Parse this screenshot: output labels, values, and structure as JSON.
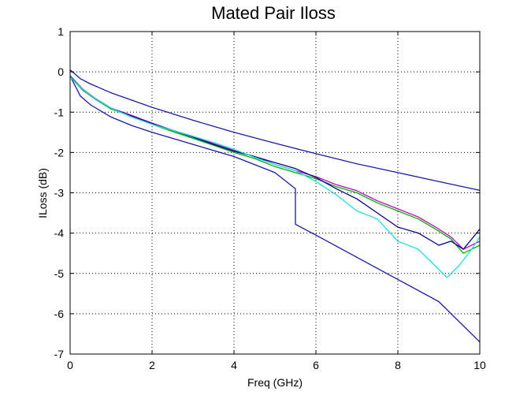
{
  "chart_data": {
    "type": "line",
    "title": "Mated Pair Iloss",
    "xlabel": "Freq (GHz)",
    "ylabel": "ILoss (dB)",
    "xlim": [
      0,
      10
    ],
    "ylim": [
      -7,
      1
    ],
    "xticks": [
      0,
      2,
      4,
      6,
      8,
      10
    ],
    "yticks": [
      1,
      0,
      -1,
      -2,
      -3,
      -4,
      -5,
      -6,
      -7
    ],
    "grid": true,
    "legend": "none",
    "series": [
      {
        "color": "#1a1aa8",
        "x": [
          0,
          0.25,
          0.5,
          1,
          1.5,
          2,
          2.5,
          3,
          3.5,
          4,
          5,
          6,
          7,
          8,
          9,
          10
        ],
        "y": [
          0.05,
          -0.17,
          -0.3,
          -0.52,
          -0.7,
          -0.88,
          -1.04,
          -1.2,
          -1.35,
          -1.5,
          -1.77,
          -2.03,
          -2.28,
          -2.5,
          -2.72,
          -2.94
        ]
      },
      {
        "color": "#1a1aa8",
        "x": [
          0,
          0.25,
          0.5,
          1,
          1.5,
          2,
          3,
          4,
          5,
          5.5,
          5.5,
          6,
          7,
          8,
          9,
          10
        ],
        "y": [
          -0.1,
          -0.6,
          -0.82,
          -1.12,
          -1.33,
          -1.5,
          -1.8,
          -2.1,
          -2.5,
          -2.9,
          -3.78,
          -4.05,
          -4.6,
          -5.15,
          -5.7,
          -6.7
        ]
      },
      {
        "color": "#c000c0",
        "x": [
          0,
          0.3,
          0.6,
          1,
          1.5,
          2,
          2.5,
          3,
          3.5,
          4,
          4.5,
          5,
          5.5,
          6,
          6.5,
          7,
          7.5,
          8,
          8.5,
          9,
          9.3,
          9.6,
          10
        ],
        "y": [
          -0.1,
          -0.42,
          -0.65,
          -0.9,
          -1.08,
          -1.27,
          -1.45,
          -1.6,
          -1.78,
          -1.95,
          -2.1,
          -2.3,
          -2.45,
          -2.6,
          -2.8,
          -2.95,
          -3.2,
          -3.4,
          -3.6,
          -3.9,
          -4.1,
          -4.4,
          -4.2
        ]
      },
      {
        "color": "#00b000",
        "x": [
          0,
          0.3,
          0.6,
          1,
          1.5,
          2,
          2.5,
          3,
          3.5,
          4,
          4.5,
          5,
          5.5,
          6,
          6.5,
          7,
          7.5,
          8,
          8.5,
          9,
          9.3,
          9.6,
          10
        ],
        "y": [
          -0.12,
          -0.45,
          -0.67,
          -0.92,
          -1.1,
          -1.3,
          -1.48,
          -1.65,
          -1.82,
          -2.0,
          -2.15,
          -2.35,
          -2.5,
          -2.65,
          -2.85,
          -3.0,
          -3.25,
          -3.45,
          -3.65,
          -3.95,
          -4.15,
          -4.5,
          -4.3
        ]
      },
      {
        "color": "#00008b",
        "x": [
          0,
          0.3,
          0.6,
          1,
          1.5,
          2,
          2.5,
          3,
          3.5,
          4,
          4.5,
          5,
          5.5,
          6,
          6.5,
          7,
          7.5,
          8,
          8.5,
          9,
          9.3,
          9.6,
          10
        ],
        "y": [
          -0.1,
          -0.43,
          -0.66,
          -0.9,
          -1.1,
          -1.28,
          -1.45,
          -1.62,
          -1.8,
          -1.97,
          -2.1,
          -2.25,
          -2.4,
          -2.62,
          -2.9,
          -3.15,
          -3.5,
          -3.85,
          -4.0,
          -4.3,
          -4.2,
          -4.4,
          -3.9
        ]
      },
      {
        "color": "#20e0e0",
        "x": [
          0,
          0.3,
          0.6,
          1,
          1.5,
          2,
          2.5,
          3,
          3.5,
          4,
          4.5,
          5,
          5.5,
          6,
          6.5,
          7,
          7.5,
          8,
          8.5,
          9,
          9.2,
          9.5,
          9.8,
          10
        ],
        "y": [
          -0.12,
          -0.43,
          -0.66,
          -0.9,
          -1.12,
          -1.3,
          -1.45,
          -1.6,
          -1.75,
          -1.92,
          -2.12,
          -2.3,
          -2.45,
          -2.72,
          -3.05,
          -3.45,
          -3.65,
          -4.2,
          -4.4,
          -4.9,
          -5.1,
          -4.8,
          -4.4,
          -4.1
        ]
      }
    ]
  }
}
